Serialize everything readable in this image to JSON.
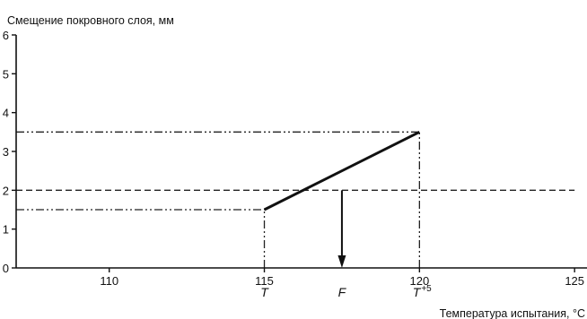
{
  "chart_data": {
    "type": "line",
    "ylabel": "Смещение покровного слоя, мм",
    "xlabel": "Температура испытания, °С",
    "xlim": [
      107,
      125.4
    ],
    "ylim": [
      0,
      6
    ],
    "x_ticks": [
      110,
      115,
      120,
      125
    ],
    "y_ticks": [
      0,
      1,
      2,
      3,
      4,
      5,
      6
    ],
    "series": [
      {
        "points": [
          [
            115,
            1.5
          ],
          [
            120,
            3.5
          ]
        ],
        "style": "solid-bold"
      }
    ],
    "reference_lines": [
      {
        "orientation": "horizontal",
        "y": 2.0,
        "x_from": 107,
        "x_to": 125,
        "style": "dashed"
      },
      {
        "orientation": "horizontal",
        "y": 3.5,
        "x_from": 107,
        "x_to": 120,
        "style": "dash-dot-dot"
      },
      {
        "orientation": "horizontal",
        "y": 1.5,
        "x_from": 107,
        "x_to": 115,
        "style": "dash-dot-dot"
      },
      {
        "orientation": "vertical",
        "x": 115,
        "y_from": 0,
        "y_to": 1.5,
        "style": "dash-dot-dot"
      },
      {
        "orientation": "vertical",
        "x": 120,
        "y_from": 0,
        "y_to": 3.5,
        "style": "dash-dot-dot"
      }
    ],
    "arrow": {
      "x": 117.5,
      "y_from": 2.0,
      "y_to": 0
    },
    "annotations": [
      {
        "text": "T",
        "x": 115
      },
      {
        "text": "F",
        "x": 117.5
      },
      {
        "text": "T",
        "superscript": "+5",
        "x": 120
      }
    ]
  }
}
